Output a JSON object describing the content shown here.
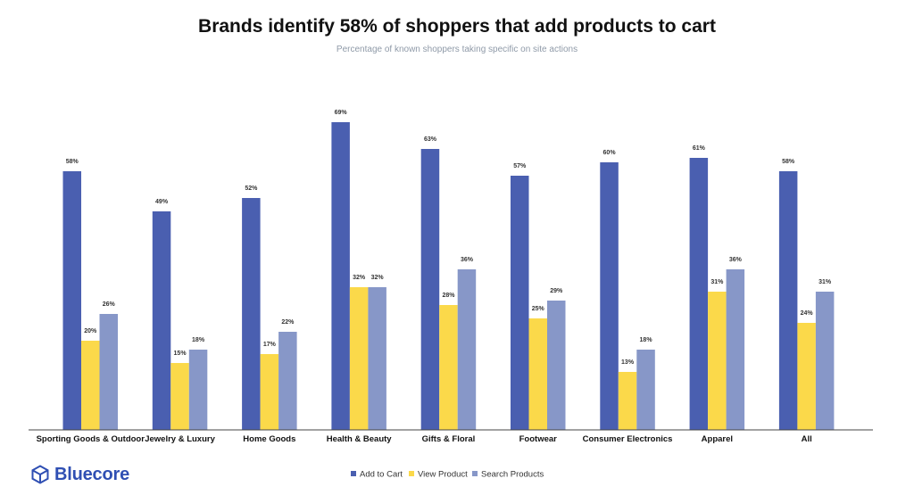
{
  "chart_data": {
    "type": "bar",
    "title": "Brands identify 58% of shoppers that add products to cart",
    "subtitle": "Percentage of known shoppers taking specific on site actions",
    "categories": [
      "Sporting Goods & Outdoor",
      "Jewelry & Luxury",
      "Home Goods",
      "Health & Beauty",
      "Gifts & Floral",
      "Footwear",
      "Consumer Electronics",
      "Apparel",
      "All"
    ],
    "series": [
      {
        "name": "Add to Cart",
        "color": "#4a5fb0",
        "values": [
          58,
          49,
          52,
          69,
          63,
          57,
          60,
          61,
          58
        ]
      },
      {
        "name": "View Product",
        "color": "#fbd94a",
        "values": [
          20,
          15,
          17,
          32,
          28,
          25,
          13,
          31,
          24
        ]
      },
      {
        "name": "Search Products",
        "color": "#8797c8",
        "values": [
          26,
          18,
          22,
          32,
          36,
          29,
          18,
          36,
          31
        ]
      }
    ],
    "value_suffix": "%",
    "ylim": [
      0,
      70
    ],
    "grid": false,
    "legend_position": "bottom-center"
  },
  "brand": {
    "name": "Bluecore",
    "icon": "cube-logo-icon",
    "color": "#2f4fb3"
  }
}
